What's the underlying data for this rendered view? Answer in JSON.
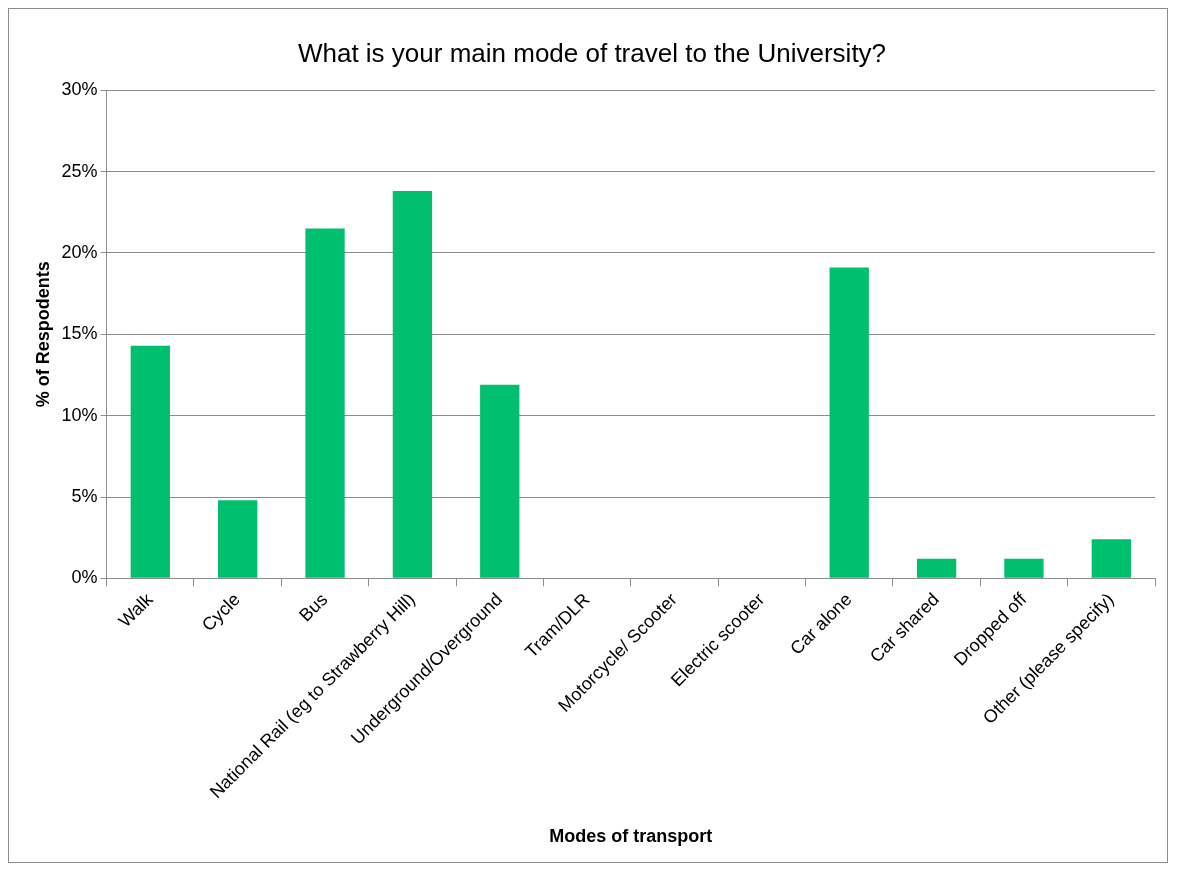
{
  "chart_data": {
    "type": "bar",
    "title": "What is your main mode of travel to the University?",
    "xlabel": "Modes of transport",
    "ylabel": "% of Respodents",
    "categories": [
      "Walk",
      "Cycle",
      "Bus",
      "National Rail (eg to Strawberry Hill)",
      "Underground/Overground",
      "Tram/DLR",
      "Motorcycle/ Scooter",
      "Electric scooter",
      "Car alone",
      "Car shared",
      "Dropped off",
      "Other (please specify)"
    ],
    "values": [
      14.3,
      4.8,
      21.5,
      23.8,
      11.9,
      0,
      0,
      0,
      19.1,
      1.2,
      1.2,
      2.4
    ],
    "color": "#00bf6f",
    "ylim": [
      0,
      30
    ],
    "yticks": [
      {
        "value": 0,
        "label": "0%"
      },
      {
        "value": 5,
        "label": "5%"
      },
      {
        "value": 10,
        "label": "10%"
      },
      {
        "value": 15,
        "label": "15%"
      },
      {
        "value": 20,
        "label": "20%"
      },
      {
        "value": 25,
        "label": "25%"
      },
      {
        "value": 30,
        "label": "30%"
      }
    ],
    "grid": "y"
  }
}
